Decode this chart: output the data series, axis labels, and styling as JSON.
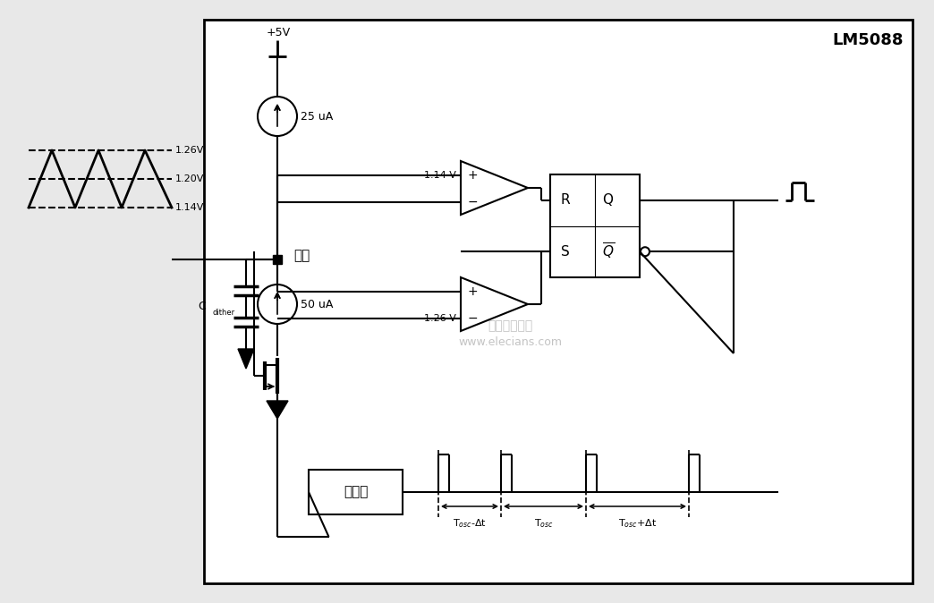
{
  "bg_color": "#e8e8e8",
  "box_color": "#ffffff",
  "line_color": "#000000",
  "title": "LM5088",
  "label_dither": "抖动",
  "label_cdither": "C",
  "label_cdither_sub": "dither",
  "label_25ua": "25 uA",
  "label_50ua": "50 uA",
  "label_5v": "+5V",
  "label_114v_top": "1.14 V",
  "label_126v_bot": "1.26 V",
  "label_126v_wave": "1.26V",
  "label_120v_wave": "1.20V",
  "label_114v_wave": "1.14V",
  "label_oscillator": "振荡器",
  "label_tosc_minus": "T$_{osc}$-Δt",
  "label_tosc": "T$_{osc}$",
  "label_tosc_plus": "T$_{osc}$+Δt",
  "watermark1": "电子发烧友网",
  "watermark2": "www.elecians.com",
  "R_label": "R",
  "Q_label": "Q",
  "S_label": "S",
  "Qbar_label": "$\\overline{Q}$"
}
